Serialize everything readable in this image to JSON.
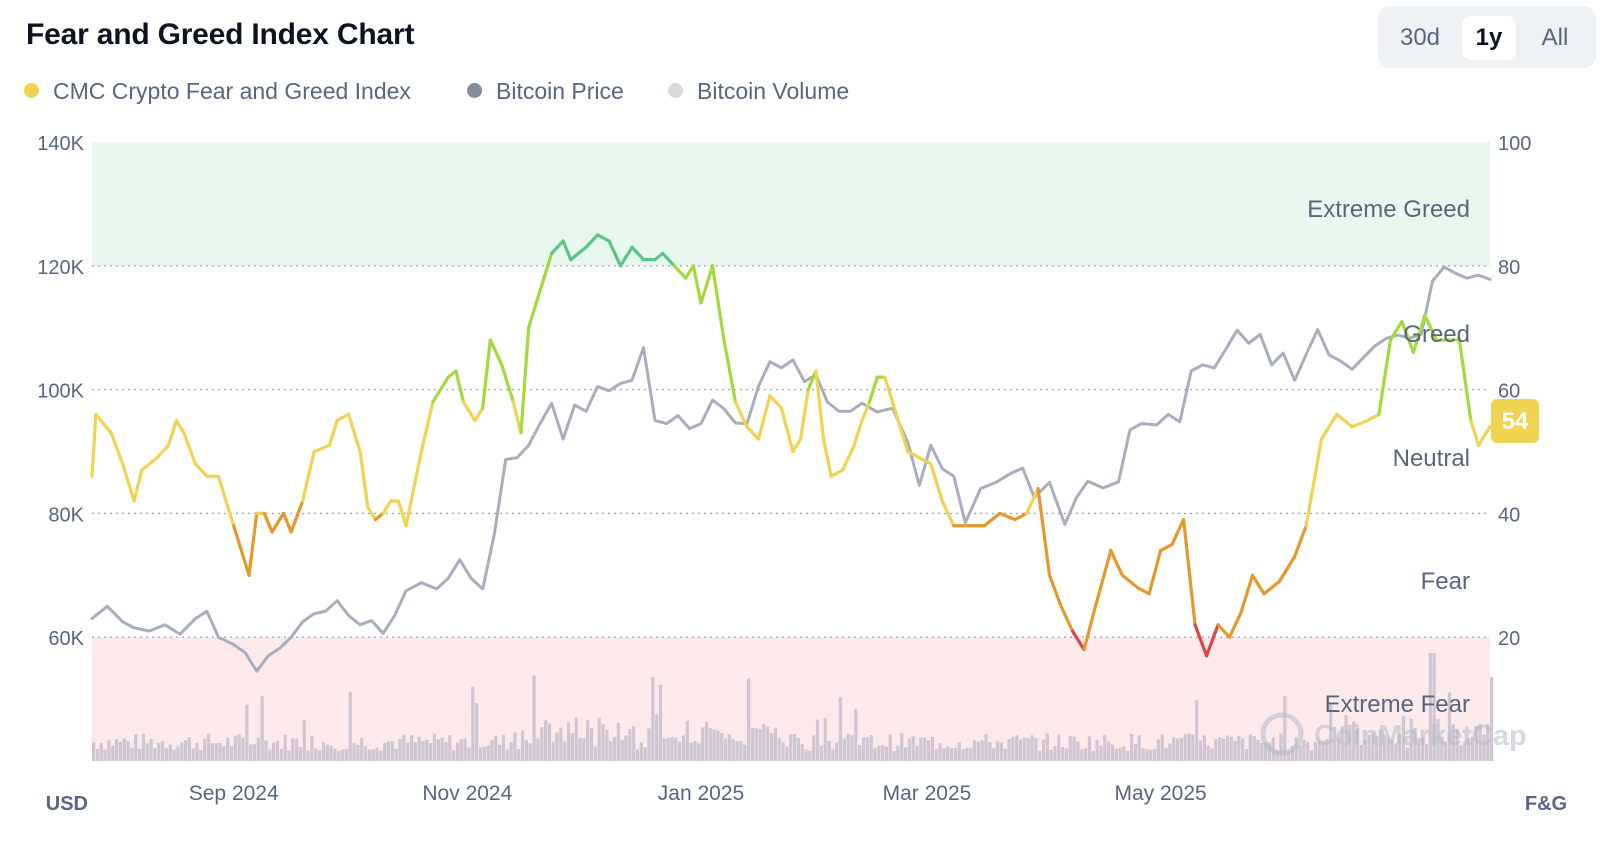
{
  "title": "Fear and Greed Index Chart",
  "range_buttons": [
    {
      "label": "30d",
      "active": false
    },
    {
      "label": "1y",
      "active": true
    },
    {
      "label": "All",
      "active": false
    }
  ],
  "legend": [
    {
      "label": "CMC Crypto Fear and Greed Index",
      "color": "#f0d351"
    },
    {
      "label": "Bitcoin Price",
      "color": "#858ca2"
    },
    {
      "label": "Bitcoin Volume",
      "color": "#d6dadf"
    }
  ],
  "watermark": "CoinMarketCap",
  "colors": {
    "extreme_greed_zone": "#e8f8ee",
    "extreme_fear_zone": "#fbe9ec",
    "extreme_greed": "#5cc486",
    "greed": "#a3d93c",
    "neutral": "#f0d351",
    "fear": "#e39a2b",
    "extreme_fear": "#e04546",
    "price_line": "#a8aebd",
    "volume_bars": "#cfc6d3",
    "current_badge": "#f0d351"
  },
  "chart_data": {
    "type": "line",
    "left_axis": {
      "label": "USD",
      "ticks": [
        "140K",
        "120K",
        "100K",
        "80K",
        "60K"
      ],
      "tick_values": [
        140000,
        120000,
        100000,
        80000,
        60000
      ],
      "range": [
        40000,
        140000
      ]
    },
    "right_axis": {
      "label": "F&G",
      "ticks": [
        "100",
        "80",
        "60",
        "40",
        "20"
      ],
      "tick_values": [
        100,
        80,
        60,
        40,
        20
      ],
      "range": [
        0,
        100
      ]
    },
    "x_axis": {
      "ticks": [
        "Sep 2024",
        "Nov 2024",
        "Jan 2025",
        "Mar 2025",
        "May 2025"
      ],
      "tick_dates": [
        "2024-09-01",
        "2024-11-01",
        "2025-01-01",
        "2025-03-01",
        "2025-05-01"
      ],
      "range": [
        "2024-07-26",
        "2025-07-26"
      ]
    },
    "zones": [
      {
        "label": "Extreme Greed",
        "from": 80,
        "to": 100
      },
      {
        "label": "Greed",
        "from": 60,
        "to": 80
      },
      {
        "label": "Neutral",
        "from": 40,
        "to": 60
      },
      {
        "label": "Fear",
        "from": 20,
        "to": 40
      },
      {
        "label": "Extreme Fear",
        "from": 0,
        "to": 20
      }
    ],
    "current_value": "54",
    "series": [
      {
        "name": "CMC Crypto Fear and Greed Index",
        "axis": "right",
        "points": [
          [
            "2024-07-26",
            46
          ],
          [
            "2024-07-27",
            56
          ],
          [
            "2024-07-31",
            53
          ],
          [
            "2024-08-03",
            48
          ],
          [
            "2024-08-06",
            42
          ],
          [
            "2024-08-08",
            47
          ],
          [
            "2024-08-12",
            49
          ],
          [
            "2024-08-15",
            51
          ],
          [
            "2024-08-17",
            55
          ],
          [
            "2024-08-19",
            53
          ],
          [
            "2024-08-22",
            48
          ],
          [
            "2024-08-25",
            46
          ],
          [
            "2024-08-28",
            46
          ],
          [
            "2024-08-30",
            42
          ],
          [
            "2024-09-01",
            38
          ],
          [
            "2024-09-03",
            34
          ],
          [
            "2024-09-05",
            30
          ],
          [
            "2024-09-07",
            40
          ],
          [
            "2024-09-09",
            40
          ],
          [
            "2024-09-11",
            37
          ],
          [
            "2024-09-14",
            40
          ],
          [
            "2024-09-16",
            37
          ],
          [
            "2024-09-19",
            42
          ],
          [
            "2024-09-22",
            50
          ],
          [
            "2024-09-26",
            51
          ],
          [
            "2024-09-28",
            55
          ],
          [
            "2024-10-01",
            56
          ],
          [
            "2024-10-04",
            50
          ],
          [
            "2024-10-06",
            41
          ],
          [
            "2024-10-08",
            39
          ],
          [
            "2024-10-10",
            40
          ],
          [
            "2024-10-12",
            42
          ],
          [
            "2024-10-14",
            42
          ],
          [
            "2024-10-16",
            38
          ],
          [
            "2024-10-20",
            50
          ],
          [
            "2024-10-23",
            58
          ],
          [
            "2024-10-27",
            62
          ],
          [
            "2024-10-29",
            63
          ],
          [
            "2024-10-31",
            58
          ],
          [
            "2024-11-03",
            55
          ],
          [
            "2024-11-05",
            57
          ],
          [
            "2024-11-07",
            68
          ],
          [
            "2024-11-10",
            64
          ],
          [
            "2024-11-13",
            58
          ],
          [
            "2024-11-15",
            53
          ],
          [
            "2024-11-17",
            70
          ],
          [
            "2024-11-20",
            76
          ],
          [
            "2024-11-23",
            82
          ],
          [
            "2024-11-26",
            84
          ],
          [
            "2024-11-28",
            81
          ],
          [
            "2024-11-30",
            82
          ],
          [
            "2024-12-02",
            83
          ],
          [
            "2024-12-05",
            85
          ],
          [
            "2024-12-08",
            84
          ],
          [
            "2024-12-11",
            80
          ],
          [
            "2024-12-14",
            83
          ],
          [
            "2024-12-17",
            81
          ],
          [
            "2024-12-20",
            81
          ],
          [
            "2024-12-22",
            82
          ],
          [
            "2024-12-25",
            80
          ],
          [
            "2024-12-28",
            78
          ],
          [
            "2024-12-30",
            80
          ],
          [
            "2025-01-01",
            74
          ],
          [
            "2025-01-04",
            80
          ],
          [
            "2025-01-07",
            68
          ],
          [
            "2025-01-10",
            58
          ],
          [
            "2025-01-13",
            54
          ],
          [
            "2025-01-16",
            52
          ],
          [
            "2025-01-19",
            59
          ],
          [
            "2025-01-22",
            57
          ],
          [
            "2025-01-25",
            50
          ],
          [
            "2025-01-27",
            52
          ],
          [
            "2025-01-29",
            60
          ],
          [
            "2025-01-31",
            63
          ],
          [
            "2025-02-02",
            52
          ],
          [
            "2025-02-04",
            46
          ],
          [
            "2025-02-07",
            47
          ],
          [
            "2025-02-10",
            51
          ],
          [
            "2025-02-12",
            55
          ],
          [
            "2025-02-14",
            58
          ],
          [
            "2025-02-16",
            62
          ],
          [
            "2025-02-18",
            62
          ],
          [
            "2025-02-21",
            56
          ],
          [
            "2025-02-24",
            50
          ],
          [
            "2025-02-27",
            49
          ],
          [
            "2025-03-02",
            48
          ],
          [
            "2025-03-05",
            42
          ],
          [
            "2025-03-08",
            38
          ],
          [
            "2025-03-12",
            38
          ],
          [
            "2025-03-16",
            38
          ],
          [
            "2025-03-20",
            40
          ],
          [
            "2025-03-24",
            39
          ],
          [
            "2025-03-27",
            40
          ],
          [
            "2025-03-30",
            44
          ],
          [
            "2025-04-02",
            30
          ],
          [
            "2025-04-05",
            25
          ],
          [
            "2025-04-08",
            21
          ],
          [
            "2025-04-11",
            18
          ],
          [
            "2025-04-14",
            25
          ],
          [
            "2025-04-18",
            34
          ],
          [
            "2025-04-21",
            30
          ],
          [
            "2025-04-25",
            28
          ],
          [
            "2025-04-28",
            27
          ],
          [
            "2025-05-01",
            34
          ],
          [
            "2025-05-04",
            35
          ],
          [
            "2025-05-07",
            39
          ],
          [
            "2025-05-10",
            22
          ],
          [
            "2025-05-13",
            17
          ],
          [
            "2025-05-16",
            22
          ],
          [
            "2025-05-19",
            20
          ],
          [
            "2025-05-22",
            24
          ],
          [
            "2025-05-25",
            30
          ],
          [
            "2025-05-28",
            27
          ],
          [
            "2025-06-01",
            29
          ],
          [
            "2025-06-05",
            33
          ],
          [
            "2025-06-08",
            38
          ],
          [
            "2025-06-12",
            52
          ],
          [
            "2025-06-16",
            56
          ],
          [
            "2025-06-20",
            54
          ],
          [
            "2025-06-24",
            55
          ],
          [
            "2025-06-27",
            56
          ],
          [
            "2025-06-30",
            68
          ],
          [
            "2025-07-03",
            71
          ],
          [
            "2025-07-06",
            66
          ],
          [
            "2025-07-09",
            72
          ],
          [
            "2025-07-12",
            68
          ],
          [
            "2025-07-15",
            68
          ],
          [
            "2025-07-18",
            68
          ],
          [
            "2025-07-21",
            55
          ],
          [
            "2025-07-23",
            51
          ],
          [
            "2025-07-26",
            54
          ]
        ]
      },
      {
        "name": "Bitcoin Price",
        "axis": "left",
        "points": [
          [
            "2024-07-26",
            63000
          ],
          [
            "2024-07-30",
            65000
          ],
          [
            "2024-08-03",
            62500
          ],
          [
            "2024-08-06",
            61500
          ],
          [
            "2024-08-10",
            61000
          ],
          [
            "2024-08-14",
            62000
          ],
          [
            "2024-08-18",
            60500
          ],
          [
            "2024-08-22",
            63000
          ],
          [
            "2024-08-25",
            64200
          ],
          [
            "2024-08-28",
            60000
          ],
          [
            "2024-09-01",
            58800
          ],
          [
            "2024-09-04",
            57500
          ],
          [
            "2024-09-07",
            54500
          ],
          [
            "2024-09-10",
            57000
          ],
          [
            "2024-09-13",
            58200
          ],
          [
            "2024-09-16",
            60000
          ],
          [
            "2024-09-19",
            62500
          ],
          [
            "2024-09-22",
            63800
          ],
          [
            "2024-09-25",
            64200
          ],
          [
            "2024-09-28",
            65900
          ],
          [
            "2024-10-01",
            63500
          ],
          [
            "2024-10-04",
            62000
          ],
          [
            "2024-10-07",
            62700
          ],
          [
            "2024-10-10",
            60600
          ],
          [
            "2024-10-13",
            63500
          ],
          [
            "2024-10-16",
            67500
          ],
          [
            "2024-10-20",
            68800
          ],
          [
            "2024-10-24",
            67800
          ],
          [
            "2024-10-27",
            69500
          ],
          [
            "2024-10-30",
            72500
          ],
          [
            "2024-11-02",
            69500
          ],
          [
            "2024-11-05",
            67800
          ],
          [
            "2024-11-08",
            76500
          ],
          [
            "2024-11-11",
            88700
          ],
          [
            "2024-11-14",
            89000
          ],
          [
            "2024-11-17",
            91000
          ],
          [
            "2024-11-20",
            94500
          ],
          [
            "2024-11-23",
            97800
          ],
          [
            "2024-11-26",
            92000
          ],
          [
            "2024-11-29",
            97500
          ],
          [
            "2024-12-02",
            96500
          ],
          [
            "2024-12-05",
            100500
          ],
          [
            "2024-12-08",
            99800
          ],
          [
            "2024-12-11",
            101000
          ],
          [
            "2024-12-14",
            101500
          ],
          [
            "2024-12-17",
            106800
          ],
          [
            "2024-12-20",
            95000
          ],
          [
            "2024-12-23",
            94500
          ],
          [
            "2024-12-26",
            95800
          ],
          [
            "2024-12-29",
            93700
          ],
          [
            "2025-01-01",
            94500
          ],
          [
            "2025-01-04",
            98300
          ],
          [
            "2025-01-07",
            96900
          ],
          [
            "2025-01-10",
            94600
          ],
          [
            "2025-01-13",
            94500
          ],
          [
            "2025-01-16",
            100500
          ],
          [
            "2025-01-19",
            104500
          ],
          [
            "2025-01-22",
            103500
          ],
          [
            "2025-01-25",
            104800
          ],
          [
            "2025-01-28",
            101300
          ],
          [
            "2025-01-31",
            102400
          ],
          [
            "2025-02-03",
            98000
          ],
          [
            "2025-02-06",
            96500
          ],
          [
            "2025-02-09",
            96500
          ],
          [
            "2025-02-12",
            97800
          ],
          [
            "2025-02-16",
            96400
          ],
          [
            "2025-02-20",
            97000
          ],
          [
            "2025-02-24",
            91500
          ],
          [
            "2025-02-27",
            84500
          ],
          [
            "2025-03-02",
            91000
          ],
          [
            "2025-03-05",
            87200
          ],
          [
            "2025-03-08",
            86000
          ],
          [
            "2025-03-11",
            78500
          ],
          [
            "2025-03-15",
            84000
          ],
          [
            "2025-03-19",
            85000
          ],
          [
            "2025-03-23",
            86500
          ],
          [
            "2025-03-26",
            87300
          ],
          [
            "2025-03-29",
            82600
          ],
          [
            "2025-04-02",
            85000
          ],
          [
            "2025-04-06",
            78200
          ],
          [
            "2025-04-09",
            82500
          ],
          [
            "2025-04-12",
            85200
          ],
          [
            "2025-04-16",
            84100
          ],
          [
            "2025-04-20",
            85100
          ],
          [
            "2025-04-23",
            93500
          ],
          [
            "2025-04-26",
            94500
          ],
          [
            "2025-04-30",
            94300
          ],
          [
            "2025-05-03",
            96000
          ],
          [
            "2025-05-06",
            94800
          ],
          [
            "2025-05-09",
            103000
          ],
          [
            "2025-05-12",
            104000
          ],
          [
            "2025-05-15",
            103500
          ],
          [
            "2025-05-18",
            106500
          ],
          [
            "2025-05-21",
            109600
          ],
          [
            "2025-05-24",
            107500
          ],
          [
            "2025-05-27",
            108900
          ],
          [
            "2025-05-30",
            104000
          ],
          [
            "2025-06-02",
            105900
          ],
          [
            "2025-06-05",
            101500
          ],
          [
            "2025-06-08",
            105700
          ],
          [
            "2025-06-11",
            109700
          ],
          [
            "2025-06-14",
            105600
          ],
          [
            "2025-06-17",
            104600
          ],
          [
            "2025-06-20",
            103300
          ],
          [
            "2025-06-23",
            105200
          ],
          [
            "2025-06-26",
            107100
          ],
          [
            "2025-06-29",
            108300
          ],
          [
            "2025-07-02",
            108800
          ],
          [
            "2025-07-05",
            108300
          ],
          [
            "2025-07-08",
            108900
          ],
          [
            "2025-07-11",
            117500
          ],
          [
            "2025-07-14",
            119800
          ],
          [
            "2025-07-17",
            118800
          ],
          [
            "2025-07-20",
            118000
          ],
          [
            "2025-07-23",
            118500
          ],
          [
            "2025-07-26",
            117800
          ]
        ]
      }
    ]
  }
}
